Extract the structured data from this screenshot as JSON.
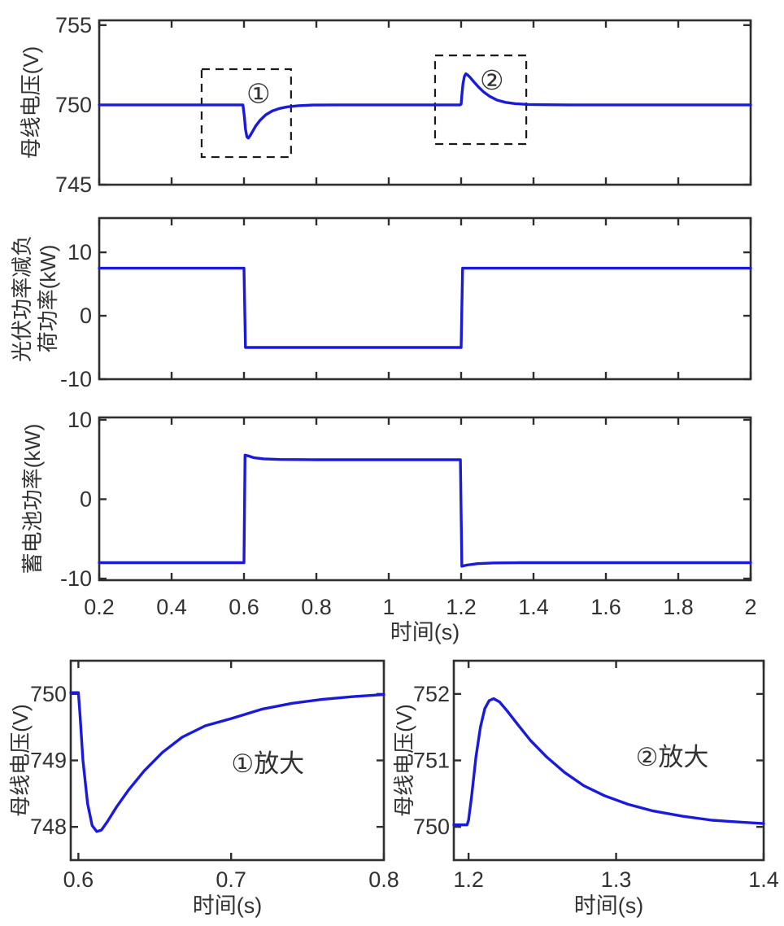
{
  "figure": {
    "background": "#ffffff",
    "line_color": "#1a1adb",
    "frame_color": "#2e2e2e",
    "text_color": "#323232"
  },
  "chart_data": [
    {
      "id": "bus-voltage",
      "type": "line",
      "xlabel": "",
      "ylabel_lines": [
        "母线电压(V)"
      ],
      "xlim": [
        0.2,
        2
      ],
      "ylim": [
        745,
        755.3
      ],
      "xtick_values": [
        0.2,
        0.4,
        0.6,
        0.8,
        1,
        1.2,
        1.4,
        1.6,
        1.8,
        2
      ],
      "xtick_labels": [],
      "ytick_values": [
        745,
        750,
        755
      ],
      "ytick_labels": [
        "745",
        "750",
        "755"
      ],
      "grid": false,
      "series": [
        {
          "name": "母线电压",
          "points": [
            [
              0.2,
              750
            ],
            [
              0.597,
              750
            ],
            [
              0.601,
              749.3
            ],
            [
              0.604,
              748.5
            ],
            [
              0.608,
              748.0
            ],
            [
              0.612,
              747.92
            ],
            [
              0.617,
              748.08
            ],
            [
              0.624,
              748.35
            ],
            [
              0.633,
              748.7
            ],
            [
              0.645,
              749.05
            ],
            [
              0.66,
              749.38
            ],
            [
              0.678,
              749.62
            ],
            [
              0.698,
              749.78
            ],
            [
              0.72,
              749.88
            ],
            [
              0.75,
              749.95
            ],
            [
              0.79,
              749.99
            ],
            [
              0.85,
              750
            ],
            [
              1.197,
              750
            ],
            [
              1.2,
              750.05
            ],
            [
              1.202,
              750.6
            ],
            [
              1.205,
              751.3
            ],
            [
              1.209,
              751.78
            ],
            [
              1.213,
              751.95
            ],
            [
              1.218,
              751.88
            ],
            [
              1.225,
              751.72
            ],
            [
              1.235,
              751.45
            ],
            [
              1.248,
              751.12
            ],
            [
              1.263,
              750.8
            ],
            [
              1.28,
              750.52
            ],
            [
              1.3,
              750.3
            ],
            [
              1.323,
              750.16
            ],
            [
              1.35,
              750.08
            ],
            [
              1.385,
              750.03
            ],
            [
              1.43,
              750.01
            ],
            [
              1.5,
              750
            ],
            [
              2,
              750
            ]
          ]
        }
      ],
      "annotations": [
        {
          "text": "①",
          "x": 0.64,
          "y": 750.72
        },
        {
          "text": "②",
          "x": 1.285,
          "y": 751.55
        }
      ],
      "dashed_boxes": [
        {
          "x": [
            0.483,
            0.73
          ],
          "y": [
            746.73,
            752.24
          ]
        },
        {
          "x": [
            1.128,
            1.38
          ],
          "y": [
            747.55,
            753.1
          ]
        }
      ]
    },
    {
      "id": "pv-minus-load-power",
      "type": "line",
      "xlabel": "",
      "ylabel_lines": [
        "光伏功率减负",
        "荷功率(kW)"
      ],
      "xlim": [
        0.2,
        2
      ],
      "ylim": [
        -10,
        15.4
      ],
      "xtick_values": [
        0.2,
        0.4,
        0.6,
        0.8,
        1,
        1.2,
        1.4,
        1.6,
        1.8,
        2
      ],
      "xtick_labels": [],
      "ytick_values": [
        -10,
        0,
        10
      ],
      "ytick_labels": [
        "-10",
        "0",
        "10"
      ],
      "grid": false,
      "series": [
        {
          "name": "光伏功率减负荷功率",
          "points": [
            [
              0.2,
              7.5
            ],
            [
              0.6,
              7.5
            ],
            [
              0.604,
              -5
            ],
            [
              1.2,
              -5
            ],
            [
              1.204,
              7.5
            ],
            [
              2,
              7.5
            ]
          ]
        }
      ],
      "annotations": [],
      "dashed_boxes": []
    },
    {
      "id": "battery-power",
      "type": "line",
      "xlabel": "时间(s)",
      "ylabel_lines": [
        "蓄电池功率(kW)"
      ],
      "xlim": [
        0.2,
        2
      ],
      "ylim": [
        -10.2,
        10.3
      ],
      "xtick_values": [
        0.2,
        0.4,
        0.6,
        0.8,
        1,
        1.2,
        1.4,
        1.6,
        1.8,
        2
      ],
      "xtick_labels": [
        "0.2",
        "0.4",
        "0.6",
        "0.8",
        "1",
        "1.2",
        "1.4",
        "1.6",
        "1.8",
        "2"
      ],
      "ytick_values": [
        -10,
        0,
        10
      ],
      "ytick_labels": [
        "-10",
        "0",
        "10"
      ],
      "grid": false,
      "series": [
        {
          "name": "蓄电池功率",
          "points": [
            [
              0.2,
              -8
            ],
            [
              0.6,
              -8
            ],
            [
              0.603,
              5.55
            ],
            [
              0.612,
              5.45
            ],
            [
              0.628,
              5.22
            ],
            [
              0.655,
              5.08
            ],
            [
              0.7,
              5.0
            ],
            [
              0.8,
              4.97
            ],
            [
              1.198,
              4.97
            ],
            [
              1.202,
              -8.45
            ],
            [
              1.215,
              -8.3
            ],
            [
              1.245,
              -8.12
            ],
            [
              1.29,
              -8.03
            ],
            [
              1.36,
              -8
            ],
            [
              2,
              -8
            ]
          ]
        }
      ],
      "annotations": [],
      "dashed_boxes": []
    },
    {
      "id": "event1-zoom",
      "type": "line",
      "xlabel": "时间(s)",
      "ylabel_lines": [
        "母线电压(V)"
      ],
      "xlim": [
        0.595,
        0.8
      ],
      "ylim": [
        747.5,
        750.5
      ],
      "xtick_values": [
        0.6,
        0.7,
        0.8
      ],
      "xtick_labels": [
        "0.6",
        "0.7",
        "0.8"
      ],
      "ytick_values": [
        748,
        749,
        750
      ],
      "ytick_labels": [
        "748",
        "749",
        "750"
      ],
      "grid": false,
      "series": [
        {
          "name": "母线电压",
          "points": [
            [
              0.595,
              750.02
            ],
            [
              0.6,
              750.02
            ],
            [
              0.601,
              749.7
            ],
            [
              0.603,
              749.0
            ],
            [
              0.606,
              748.35
            ],
            [
              0.609,
              748.02
            ],
            [
              0.612,
              747.93
            ],
            [
              0.615,
              747.95
            ],
            [
              0.619,
              748.08
            ],
            [
              0.625,
              748.3
            ],
            [
              0.633,
              748.56
            ],
            [
              0.643,
              748.84
            ],
            [
              0.655,
              749.12
            ],
            [
              0.668,
              749.35
            ],
            [
              0.683,
              749.52
            ],
            [
              0.7,
              749.63
            ],
            [
              0.72,
              749.77
            ],
            [
              0.74,
              749.86
            ],
            [
              0.76,
              749.92
            ],
            [
              0.78,
              749.96
            ],
            [
              0.8,
              749.99
            ]
          ]
        }
      ],
      "annotations": [
        {
          "text": "①放大",
          "x": 0.724,
          "y": 748.95
        }
      ],
      "dashed_boxes": []
    },
    {
      "id": "event2-zoom",
      "type": "line",
      "xlabel": "时间(s)",
      "ylabel_lines": [
        "母线电压(V)"
      ],
      "xlim": [
        1.19,
        1.4
      ],
      "ylim": [
        749.5,
        752.5
      ],
      "xtick_values": [
        1.2,
        1.3,
        1.4
      ],
      "xtick_labels": [
        "1.2",
        "1.3",
        "1.4"
      ],
      "ytick_values": [
        750,
        751,
        752
      ],
      "ytick_labels": [
        "750",
        "751",
        "752"
      ],
      "grid": false,
      "series": [
        {
          "name": "母线电压",
          "points": [
            [
              1.19,
              750.03
            ],
            [
              1.199,
              750.03
            ],
            [
              1.2,
              750.1
            ],
            [
              1.202,
              750.45
            ],
            [
              1.205,
              751.05
            ],
            [
              1.208,
              751.5
            ],
            [
              1.211,
              751.78
            ],
            [
              1.214,
              751.9
            ],
            [
              1.217,
              751.93
            ],
            [
              1.221,
              751.88
            ],
            [
              1.226,
              751.75
            ],
            [
              1.233,
              751.55
            ],
            [
              1.242,
              751.3
            ],
            [
              1.253,
              751.05
            ],
            [
              1.265,
              750.82
            ],
            [
              1.278,
              750.62
            ],
            [
              1.292,
              750.47
            ],
            [
              1.308,
              750.34
            ],
            [
              1.325,
              750.24
            ],
            [
              1.345,
              750.16
            ],
            [
              1.365,
              750.1
            ],
            [
              1.385,
              750.07
            ],
            [
              1.4,
              750.05
            ]
          ]
        }
      ],
      "annotations": [
        {
          "text": "②放大",
          "x": 1.338,
          "y": 751.05
        }
      ],
      "dashed_boxes": []
    }
  ]
}
